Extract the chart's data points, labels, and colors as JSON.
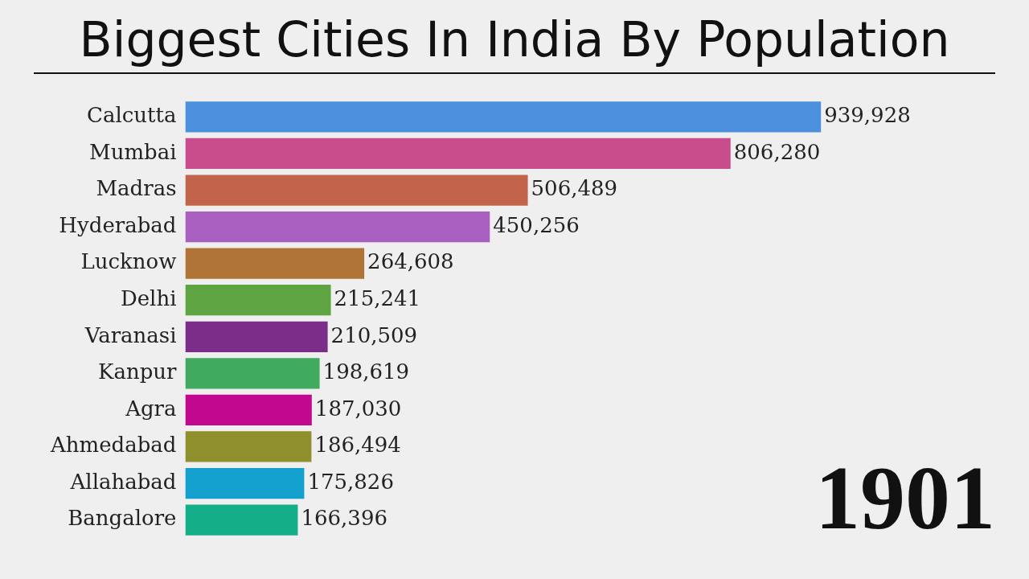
{
  "chart_data": {
    "type": "bar",
    "orientation": "horizontal",
    "title": "Biggest Cities In India By Population",
    "categories": [
      "Calcutta",
      "Mumbai",
      "Madras",
      "Hyderabad",
      "Lucknow",
      "Delhi",
      "Varanasi",
      "Kanpur",
      "Agra",
      "Ahmedabad",
      "Allahabad",
      "Bangalore"
    ],
    "values": [
      939928,
      806280,
      506489,
      450256,
      264608,
      215241,
      210509,
      198619,
      187030,
      186494,
      175826,
      166396
    ],
    "colors": [
      "#4a90dc",
      "#c94c8d",
      "#c2644c",
      "#a960c0",
      "#b07536",
      "#5ea443",
      "#7a2e8a",
      "#40ab5e",
      "#c2088f",
      "#8f8f2b",
      "#13a0cf",
      "#14ae88"
    ],
    "value_labels": [
      "939,928",
      "806,280",
      "506,489",
      "450,256",
      "264,608",
      "215,241",
      "210,509",
      "198,619",
      "187,030",
      "186,494",
      "175,826",
      "166,396"
    ],
    "tick_labels": "y",
    "grid": false,
    "legend": false,
    "annotations": [
      "1901"
    ]
  }
}
